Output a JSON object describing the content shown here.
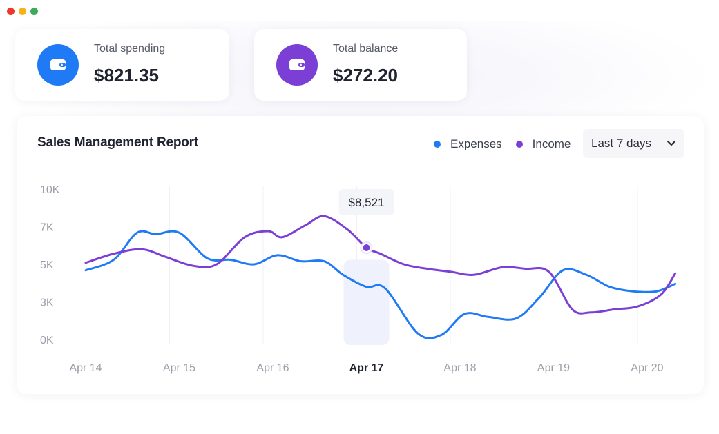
{
  "window": {
    "controls": [
      "close",
      "minimize",
      "maximize"
    ]
  },
  "stats": [
    {
      "label": "Total spending",
      "value": "$821.35",
      "icon": "wallet-icon",
      "color": "#1f7af5"
    },
    {
      "label": "Total balance",
      "value": "$272.20",
      "icon": "wallet-icon",
      "color": "#7b3fd6"
    }
  ],
  "report": {
    "title": "Sales Management Report",
    "range_label": "Last 7 days",
    "tooltip": "$8,521",
    "highlight_index": 3
  },
  "chart_data": {
    "type": "line",
    "categories": [
      "Apr 14",
      "Apr 15",
      "Apr 16",
      "Apr 17",
      "Apr 18",
      "Apr 19",
      "Apr 20"
    ],
    "y_ticks": [
      "10K",
      "7K",
      "5K",
      "3K",
      "0K"
    ],
    "ylim": [
      0,
      10
    ],
    "grid": "vertical",
    "legend_position": "top-right",
    "series": [
      {
        "name": "Expenses",
        "color": "#1f7af5",
        "x": [
          0,
          0.3,
          0.55,
          0.75,
          1.0,
          1.3,
          1.55,
          1.8,
          2.05,
          2.3,
          2.55,
          2.75,
          3.0,
          3.2,
          3.55,
          3.8,
          4.05,
          4.3,
          4.6,
          4.85,
          5.1,
          5.35,
          5.6,
          5.85,
          6.1,
          6.3
        ],
        "y": [
          4.6,
          5.3,
          7.1,
          7.0,
          7.1,
          5.4,
          5.3,
          5.0,
          5.6,
          5.2,
          5.2,
          4.3,
          3.5,
          3.4,
          0.4,
          0.3,
          1.7,
          1.5,
          1.4,
          2.8,
          4.6,
          4.3,
          3.5,
          3.2,
          3.2,
          3.7
        ]
      },
      {
        "name": "Income",
        "color": "#7b3fd6",
        "x": [
          0,
          0.3,
          0.6,
          0.85,
          1.15,
          1.4,
          1.7,
          1.95,
          2.1,
          2.35,
          2.55,
          2.8,
          3.0,
          3.15,
          3.4,
          3.65,
          3.9,
          4.15,
          4.45,
          4.7,
          4.95,
          5.2,
          5.4,
          5.65,
          5.9,
          6.15,
          6.3
        ],
        "y": [
          5.1,
          5.7,
          6.0,
          5.5,
          4.9,
          5.0,
          6.8,
          7.2,
          6.8,
          7.6,
          8.2,
          7.3,
          6.1,
          5.7,
          5.0,
          4.7,
          4.5,
          4.3,
          4.8,
          4.7,
          4.5,
          2.0,
          1.8,
          2.0,
          2.2,
          3.0,
          4.4
        ]
      }
    ]
  }
}
